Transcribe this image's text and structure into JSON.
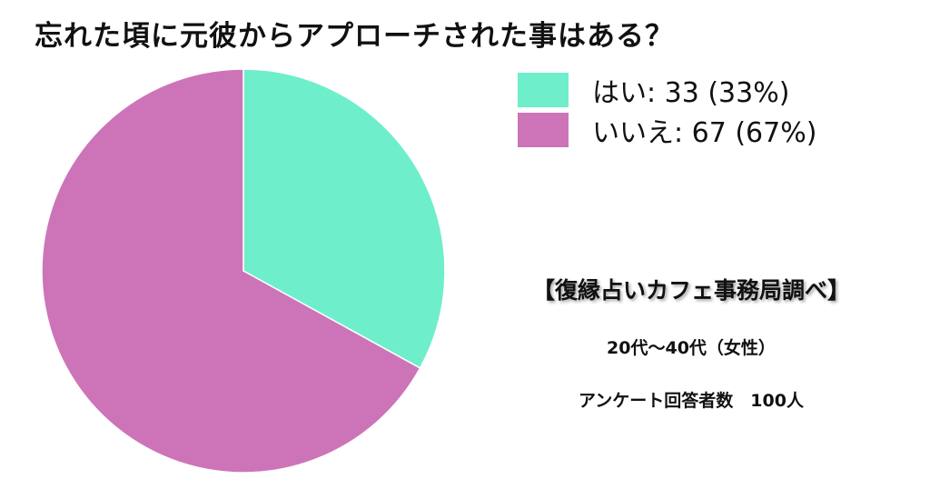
{
  "chart_data": {
    "type": "pie",
    "title": "忘れた頃に元彼からアプローチされた事はある？",
    "categories": [
      "はい",
      "いいえ"
    ],
    "values": [
      33,
      67
    ],
    "colors": [
      "#6feecb",
      "#cd74b8"
    ],
    "legend_labels": [
      "はい: 33 (33%)",
      "いいえ: 67 (67%)"
    ],
    "legend_position": "top-right",
    "start_angle": "12 o'clock",
    "direction": "clockwise"
  },
  "source": "【復縁占いカフェ事務局調べ】",
  "notes": {
    "age": "20代〜40代（女性）",
    "respondents": "アンケート回答者数　100人"
  }
}
